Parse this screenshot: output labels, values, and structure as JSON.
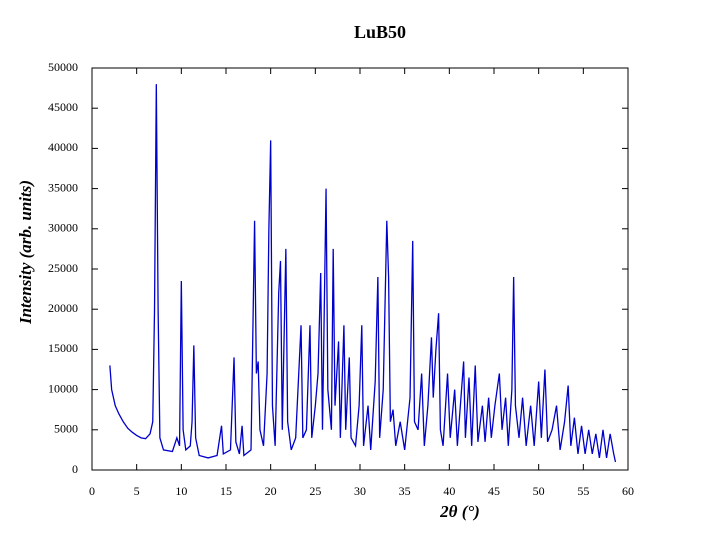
{
  "chart_data": {
    "type": "line",
    "title": "LuB50",
    "x_label": "2θ (°)",
    "y_label": "Intensity (arb. units)",
    "x": [
      2.0,
      2.2,
      2.6,
      3.0,
      3.5,
      4.0,
      4.5,
      5.0,
      5.5,
      6.0,
      6.5,
      6.8,
      7.0,
      7.2,
      7.4,
      7.6,
      8.0,
      9.0,
      9.5,
      9.8,
      10.0,
      10.2,
      10.5,
      11.0,
      11.2,
      11.4,
      11.6,
      12.0,
      13.0,
      14.0,
      14.5,
      14.7,
      15.5,
      15.9,
      16.1,
      16.5,
      16.8,
      17.0,
      17.8,
      18.2,
      18.4,
      18.6,
      18.8,
      19.2,
      19.6,
      19.8,
      20.0,
      20.2,
      20.5,
      20.9,
      21.1,
      21.3,
      21.7,
      21.9,
      22.3,
      22.8,
      23.4,
      23.6,
      24.0,
      24.4,
      24.6,
      25.0,
      25.3,
      25.6,
      25.8,
      26.2,
      26.4,
      26.8,
      27.0,
      27.2,
      27.6,
      27.8,
      28.2,
      28.4,
      28.8,
      29.0,
      29.5,
      29.9,
      30.2,
      30.4,
      30.9,
      31.2,
      31.7,
      32.0,
      32.2,
      32.6,
      33.0,
      33.2,
      33.4,
      33.7,
      34.0,
      34.5,
      35.0,
      35.6,
      35.9,
      36.1,
      36.5,
      36.9,
      37.2,
      37.6,
      38.0,
      38.2,
      38.5,
      38.8,
      39.0,
      39.3,
      39.8,
      40.1,
      40.6,
      40.9,
      41.3,
      41.6,
      41.8,
      42.2,
      42.5,
      42.9,
      43.2,
      43.7,
      44.0,
      44.4,
      44.7,
      45.1,
      45.6,
      45.9,
      46.3,
      46.6,
      47.0,
      47.2,
      47.4,
      47.8,
      48.2,
      48.6,
      49.1,
      49.5,
      50.0,
      50.3,
      50.7,
      51.0,
      51.5,
      52.0,
      52.4,
      52.9,
      53.3,
      53.6,
      54.0,
      54.4,
      54.8,
      55.2,
      55.6,
      56.0,
      56.4,
      56.8,
      57.2,
      57.6,
      58.0,
      58.4,
      58.6
    ],
    "series": [
      {
        "name": "LuB50",
        "color": "#0000cc",
        "values": [
          13000,
          10000,
          8000,
          7000,
          6000,
          5200,
          4700,
          4300,
          4000,
          3900,
          4500,
          6000,
          20000,
          48000,
          20000,
          4000,
          2500,
          2300,
          4000,
          3000,
          23500,
          5000,
          2500,
          3000,
          6000,
          15500,
          4000,
          1800,
          1500,
          1800,
          5500,
          2000,
          2500,
          14000,
          3500,
          2000,
          5500,
          1800,
          2500,
          31000,
          12000,
          13500,
          5000,
          3000,
          12000,
          30000,
          41000,
          8000,
          3000,
          22000,
          26000,
          5000,
          27500,
          6000,
          2500,
          4000,
          18000,
          4000,
          5000,
          18000,
          4000,
          8000,
          12000,
          24500,
          5000,
          35000,
          10000,
          5000,
          27500,
          8000,
          16000,
          4000,
          18000,
          5000,
          14000,
          4000,
          3000,
          8000,
          18000,
          3000,
          8000,
          2500,
          11000,
          24000,
          4000,
          10000,
          31000,
          24000,
          6000,
          7500,
          3000,
          6000,
          2500,
          9000,
          28500,
          6000,
          5000,
          12000,
          3000,
          8000,
          16500,
          9000,
          15000,
          19500,
          5000,
          3000,
          12000,
          4000,
          10000,
          3000,
          9000,
          13500,
          4000,
          11500,
          3000,
          13000,
          3500,
          8000,
          3500,
          9000,
          4000,
          8000,
          12000,
          5000,
          9000,
          3000,
          10000,
          24000,
          8000,
          4000,
          9000,
          3000,
          8000,
          3000,
          11000,
          4000,
          12500,
          3500,
          5000,
          8000,
          2500,
          6000,
          10500,
          3000,
          6500,
          2000,
          5500,
          2000,
          5000,
          2000,
          4500,
          1500,
          5000,
          1500,
          4500,
          2000,
          1000
        ]
      }
    ],
    "xlim": [
      0,
      60
    ],
    "xticks": [
      0,
      5,
      10,
      15,
      20,
      25,
      30,
      35,
      40,
      45,
      50,
      55,
      60
    ],
    "ylim": [
      0,
      50000
    ],
    "yticks": [
      0,
      5000,
      10000,
      15000,
      20000,
      25000,
      30000,
      35000,
      40000,
      45000,
      50000
    ]
  }
}
